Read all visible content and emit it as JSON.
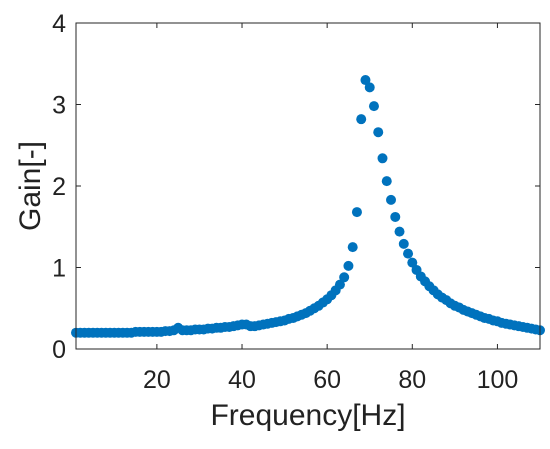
{
  "chart_data": {
    "type": "scatter",
    "xlabel": "Frequency[Hz]",
    "ylabel": "Gain[-]",
    "xlim": [
      1,
      110
    ],
    "ylim": [
      0,
      4
    ],
    "x_ticks": [
      20,
      40,
      60,
      80,
      100
    ],
    "y_ticks": [
      0,
      1,
      2,
      3,
      4
    ],
    "x_tick_labels": [
      "20",
      "40",
      "60",
      "80",
      "100"
    ],
    "y_tick_labels": [
      "0",
      "1",
      "2",
      "3",
      "4"
    ],
    "grid": false,
    "marker_color": "#0072BD",
    "series": [
      {
        "points": [
          [
            1,
            0.2
          ],
          [
            2,
            0.2
          ],
          [
            3,
            0.2
          ],
          [
            4,
            0.2
          ],
          [
            5,
            0.2
          ],
          [
            6,
            0.2
          ],
          [
            7,
            0.2
          ],
          [
            8,
            0.2
          ],
          [
            9,
            0.2
          ],
          [
            10,
            0.2
          ],
          [
            11,
            0.2
          ],
          [
            12,
            0.2
          ],
          [
            13,
            0.2
          ],
          [
            14,
            0.2
          ],
          [
            15,
            0.21
          ],
          [
            16,
            0.21
          ],
          [
            17,
            0.21
          ],
          [
            18,
            0.21
          ],
          [
            19,
            0.21
          ],
          [
            20,
            0.21
          ],
          [
            21,
            0.21
          ],
          [
            22,
            0.22
          ],
          [
            23,
            0.22
          ],
          [
            24,
            0.23
          ],
          [
            25,
            0.26
          ],
          [
            26,
            0.23
          ],
          [
            27,
            0.23
          ],
          [
            28,
            0.23
          ],
          [
            29,
            0.24
          ],
          [
            30,
            0.24
          ],
          [
            31,
            0.24
          ],
          [
            32,
            0.25
          ],
          [
            33,
            0.25
          ],
          [
            34,
            0.26
          ],
          [
            35,
            0.26
          ],
          [
            36,
            0.27
          ],
          [
            37,
            0.27
          ],
          [
            38,
            0.28
          ],
          [
            39,
            0.29
          ],
          [
            40,
            0.3
          ],
          [
            41,
            0.3
          ],
          [
            42,
            0.28
          ],
          [
            43,
            0.28
          ],
          [
            44,
            0.29
          ],
          [
            45,
            0.3
          ],
          [
            46,
            0.31
          ],
          [
            47,
            0.32
          ],
          [
            48,
            0.33
          ],
          [
            49,
            0.34
          ],
          [
            50,
            0.35
          ],
          [
            51,
            0.37
          ],
          [
            52,
            0.38
          ],
          [
            53,
            0.4
          ],
          [
            54,
            0.42
          ],
          [
            55,
            0.44
          ],
          [
            56,
            0.47
          ],
          [
            57,
            0.5
          ],
          [
            58,
            0.53
          ],
          [
            59,
            0.57
          ],
          [
            60,
            0.61
          ],
          [
            61,
            0.66
          ],
          [
            62,
            0.72
          ],
          [
            63,
            0.79
          ],
          [
            64,
            0.88
          ],
          [
            65,
            1.02
          ],
          [
            66,
            1.25
          ],
          [
            67,
            1.68
          ],
          [
            68,
            2.82
          ],
          [
            69,
            3.3
          ],
          [
            70,
            3.21
          ],
          [
            71,
            2.98
          ],
          [
            72,
            2.66
          ],
          [
            73,
            2.34
          ],
          [
            74,
            2.06
          ],
          [
            75,
            1.83
          ],
          [
            76,
            1.62
          ],
          [
            77,
            1.44
          ],
          [
            78,
            1.29
          ],
          [
            79,
            1.17
          ],
          [
            80,
            1.06
          ],
          [
            81,
            0.97
          ],
          [
            82,
            0.89
          ],
          [
            83,
            0.83
          ],
          [
            84,
            0.77
          ],
          [
            85,
            0.72
          ],
          [
            86,
            0.67
          ],
          [
            87,
            0.63
          ],
          [
            88,
            0.6
          ],
          [
            89,
            0.56
          ],
          [
            90,
            0.53
          ],
          [
            91,
            0.51
          ],
          [
            92,
            0.48
          ],
          [
            93,
            0.46
          ],
          [
            94,
            0.44
          ],
          [
            95,
            0.42
          ],
          [
            96,
            0.4
          ],
          [
            97,
            0.38
          ],
          [
            98,
            0.37
          ],
          [
            99,
            0.35
          ],
          [
            100,
            0.34
          ],
          [
            101,
            0.32
          ],
          [
            102,
            0.31
          ],
          [
            103,
            0.3
          ],
          [
            104,
            0.29
          ],
          [
            105,
            0.28
          ],
          [
            106,
            0.27
          ],
          [
            107,
            0.26
          ],
          [
            108,
            0.25
          ],
          [
            109,
            0.24
          ],
          [
            110,
            0.23
          ]
        ]
      }
    ]
  }
}
